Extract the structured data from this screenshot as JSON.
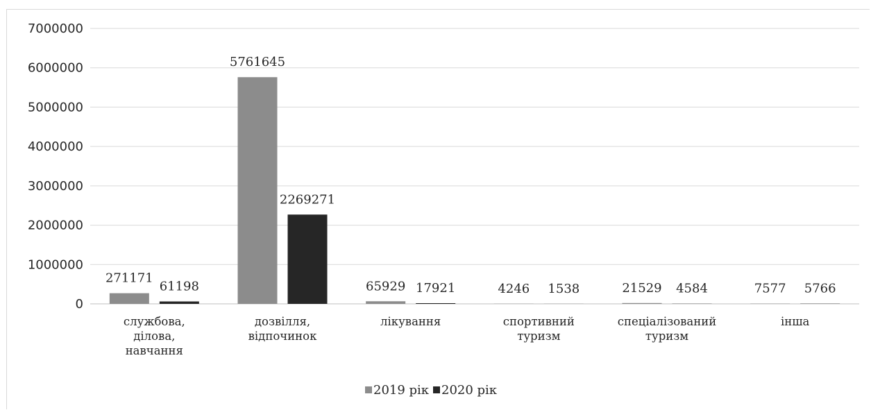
{
  "chart_data": {
    "type": "bar",
    "title": "",
    "xlabel": "",
    "ylabel": "",
    "ylim": [
      0,
      7000000
    ],
    "yticks": [
      0,
      1000000,
      2000000,
      3000000,
      4000000,
      5000000,
      6000000,
      7000000
    ],
    "grid": true,
    "legend_position": "bottom",
    "categories": [
      [
        "службова,",
        "ділова,",
        "навчання"
      ],
      [
        "дозвілля,",
        "відпочинок"
      ],
      [
        "лікування"
      ],
      [
        "спортивний",
        "туризм"
      ],
      [
        "спеціалізований",
        "туризм"
      ],
      [
        "інша"
      ]
    ],
    "series": [
      {
        "name": "2019 рік",
        "color": "#8c8c8c",
        "values": [
          271171,
          5761645,
          65929,
          4246,
          21529,
          7577
        ]
      },
      {
        "name": "2020 рік",
        "color": "#262626",
        "values": [
          61198,
          2269271,
          17921,
          1538,
          4584,
          5766
        ]
      }
    ]
  }
}
